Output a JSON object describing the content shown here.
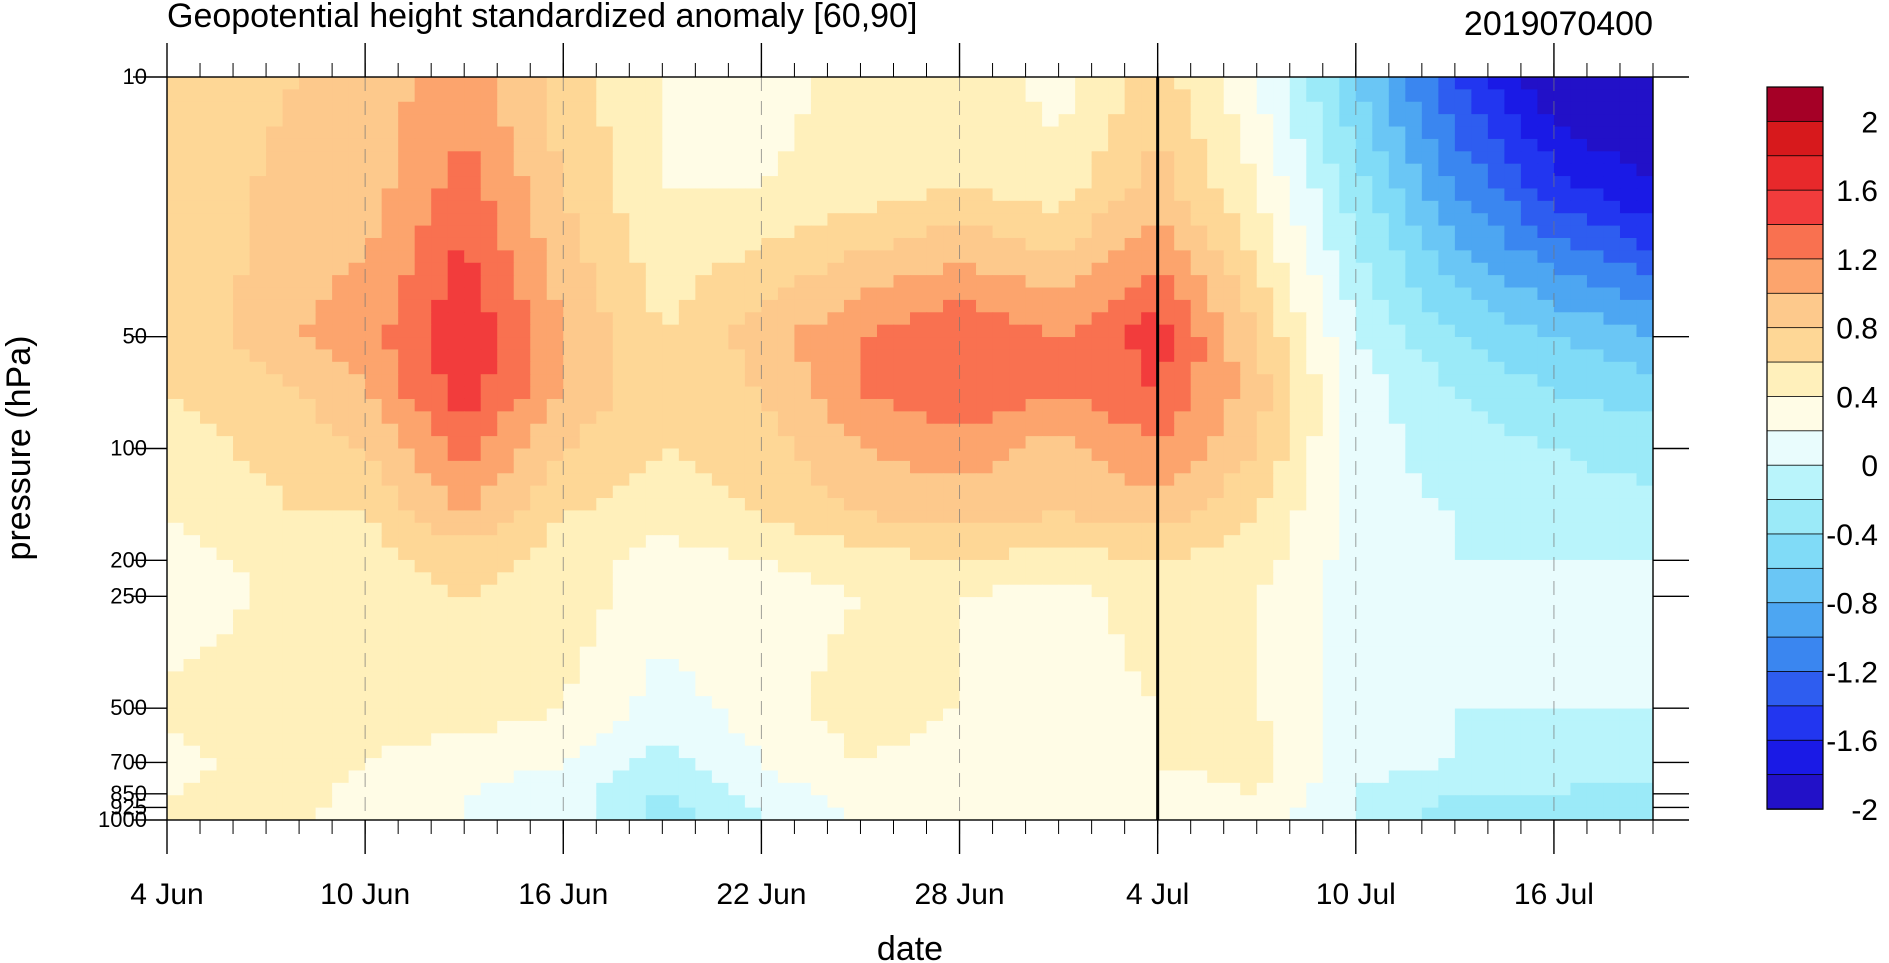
{
  "chart_data": {
    "type": "heatmap",
    "title": "Geopotential height standardized anomaly [60,90]",
    "subtitle": "2019070400",
    "xlabel": "date",
    "ylabel": "pressure (hPa)",
    "x_axis": {
      "unit": "date",
      "start": "2019-06-04",
      "end": "2019-07-19",
      "tick_labels": [
        "4 Jun",
        "10 Jun",
        "16 Jun",
        "22 Jun",
        "28 Jun",
        "4 Jul",
        "10 Jul",
        "16 Jul"
      ],
      "tick_dates": [
        "2019-06-04",
        "2019-06-10",
        "2019-06-16",
        "2019-06-22",
        "2019-06-28",
        "2019-07-04",
        "2019-07-10",
        "2019-07-16"
      ],
      "minor_tick_interval_days": 1
    },
    "y_axis": {
      "scale": "log",
      "reversed": true,
      "range": [
        1000,
        10
      ],
      "tick_labels": [
        "10",
        "50",
        "100",
        "200",
        "250",
        "500",
        "700",
        "850",
        "925",
        "1000"
      ],
      "tick_values": [
        10,
        50,
        100,
        200,
        250,
        500,
        700,
        850,
        925,
        1000
      ]
    },
    "vertical_marker_date": "2019-07-04",
    "grid": "dashed vertical lines at labeled dates",
    "colorbar": {
      "placement": "right",
      "labels": [
        "2",
        "1.6",
        "1.2",
        "0.8",
        "0.4",
        "0",
        "-0.4",
        "-0.8",
        "-1.2",
        "-1.6",
        "-2"
      ],
      "levels": [
        2.2,
        2.0,
        1.8,
        1.6,
        1.4,
        1.2,
        1.0,
        0.8,
        0.6,
        0.4,
        0.2,
        0,
        -0.2,
        -0.4,
        -0.6,
        -0.8,
        -1.0,
        -1.2,
        -1.4,
        -1.6,
        -1.8,
        -2.0,
        -2.2
      ],
      "colors": [
        "#a50026",
        "#d7191c",
        "#e8292b",
        "#f23c3c",
        "#f97150",
        "#fca46d",
        "#fdc98c",
        "#fed796",
        "#fff0bb",
        "#fffce6",
        "#e9fcfd",
        "#b9f4fb",
        "#9beaf8",
        "#80dbf7",
        "#6ac6f5",
        "#4da6f2",
        "#3a86f0",
        "#2e5df0",
        "#2236f0",
        "#1a1ae6",
        "#2211c8"
      ]
    },
    "data": {
      "dates": [
        "2019-06-04",
        "2019-06-08",
        "2019-06-10",
        "2019-06-13",
        "2019-06-16",
        "2019-06-19",
        "2019-06-22",
        "2019-06-25",
        "2019-06-28",
        "2019-07-01",
        "2019-07-04",
        "2019-07-07",
        "2019-07-10",
        "2019-07-13",
        "2019-07-16",
        "2019-07-19"
      ],
      "levels_hPa": [
        10,
        20,
        50,
        70,
        100,
        150,
        200,
        250,
        500,
        700,
        850,
        1000
      ],
      "values": [
        [
          0.6,
          0.8,
          0.9,
          1.1,
          0.7,
          0.4,
          0.3,
          0.5,
          0.6,
          0.3,
          0.7,
          0.2,
          -0.6,
          -1.4,
          -2.0,
          -2.2
        ],
        [
          0.6,
          0.9,
          0.9,
          1.3,
          0.8,
          0.4,
          0.4,
          0.5,
          0.6,
          0.5,
          0.9,
          0.4,
          -0.3,
          -1.0,
          -1.5,
          -1.8
        ],
        [
          0.6,
          1.0,
          1.1,
          1.6,
          1.0,
          0.6,
          0.9,
          1.2,
          1.4,
          1.2,
          1.5,
          0.8,
          0.0,
          -0.4,
          -0.6,
          -0.8
        ],
        [
          0.6,
          0.8,
          1.0,
          1.5,
          1.0,
          0.6,
          0.8,
          1.2,
          1.4,
          1.2,
          1.4,
          0.9,
          0.1,
          -0.2,
          -0.4,
          -0.5
        ],
        [
          0.5,
          0.7,
          0.8,
          1.3,
          0.8,
          0.6,
          0.7,
          1.0,
          1.1,
          0.9,
          1.2,
          0.8,
          0.1,
          -0.1,
          -0.2,
          -0.3
        ],
        [
          0.4,
          0.6,
          0.6,
          1.0,
          0.6,
          0.5,
          0.6,
          0.8,
          0.9,
          0.8,
          0.9,
          0.6,
          0.1,
          0.0,
          -0.1,
          -0.1
        ],
        [
          0.3,
          0.5,
          0.5,
          0.7,
          0.5,
          0.3,
          0.4,
          0.5,
          0.6,
          0.5,
          0.6,
          0.5,
          0.1,
          0.0,
          0.0,
          0.0
        ],
        [
          0.2,
          0.5,
          0.5,
          0.6,
          0.5,
          0.3,
          0.3,
          0.4,
          0.4,
          0.3,
          0.5,
          0.4,
          0.1,
          0.0,
          0.1,
          0.2
        ],
        [
          0.5,
          0.6,
          0.5,
          0.5,
          0.4,
          0.1,
          0.3,
          0.5,
          0.4,
          0.3,
          0.4,
          0.4,
          0.1,
          0.0,
          0.0,
          0.0
        ],
        [
          0.3,
          0.6,
          0.4,
          0.3,
          0.2,
          -0.1,
          0.2,
          0.4,
          0.3,
          0.3,
          0.4,
          0.5,
          0.1,
          0.0,
          -0.1,
          -0.1
        ],
        [
          0.4,
          0.5,
          0.3,
          0.2,
          0.1,
          -0.2,
          0.1,
          0.3,
          0.2,
          0.3,
          0.3,
          0.4,
          0.0,
          -0.2,
          -0.2,
          -0.3
        ],
        [
          0.4,
          0.4,
          0.3,
          0.2,
          0.1,
          -0.3,
          0.0,
          0.2,
          0.2,
          0.2,
          0.3,
          0.3,
          0.0,
          -0.3,
          -0.4,
          -0.4
        ]
      ]
    }
  }
}
